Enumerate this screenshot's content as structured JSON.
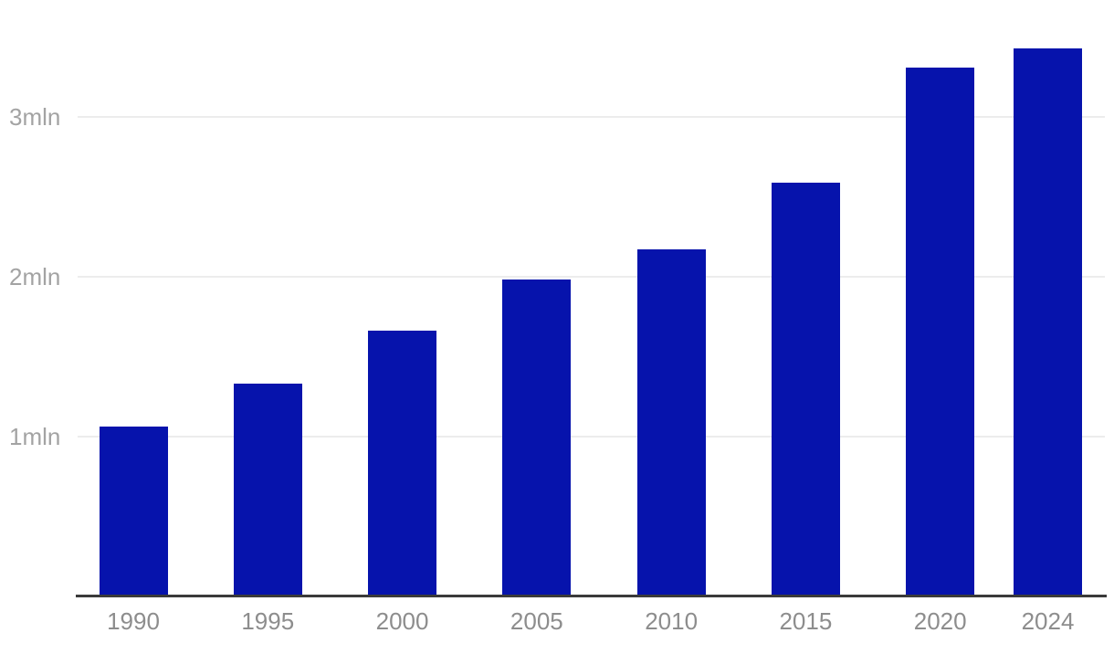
{
  "chart": {
    "title": "",
    "colors": {
      "background": "#ffffff",
      "bar": "#0613ac",
      "axis_line": "#3a3a3a",
      "gridline": "#ececec",
      "y_tick_label": "#a3a3a3",
      "x_tick_label": "#8d8d8d"
    }
  },
  "chart_data": {
    "type": "bar",
    "title": "",
    "xlabel": "",
    "ylabel": "",
    "unit": "mln",
    "x": [
      1990,
      1995,
      2000,
      2005,
      2010,
      2015,
      2020,
      2024
    ],
    "x_tick_labels": [
      "1990",
      "1995",
      "2000",
      "2005",
      "2010",
      "2015",
      "2020",
      "2024"
    ],
    "values": [
      1.05,
      1.32,
      1.65,
      1.97,
      2.16,
      2.58,
      3.3,
      3.42
    ],
    "y_ticks": [
      {
        "value": 1,
        "label": "1mln"
      },
      {
        "value": 2,
        "label": "2mln"
      },
      {
        "value": 3,
        "label": "3mln"
      }
    ],
    "ylim": [
      0,
      3.5
    ],
    "grid": true,
    "legend_position": "none",
    "x_axis_scale": "linear-years"
  }
}
